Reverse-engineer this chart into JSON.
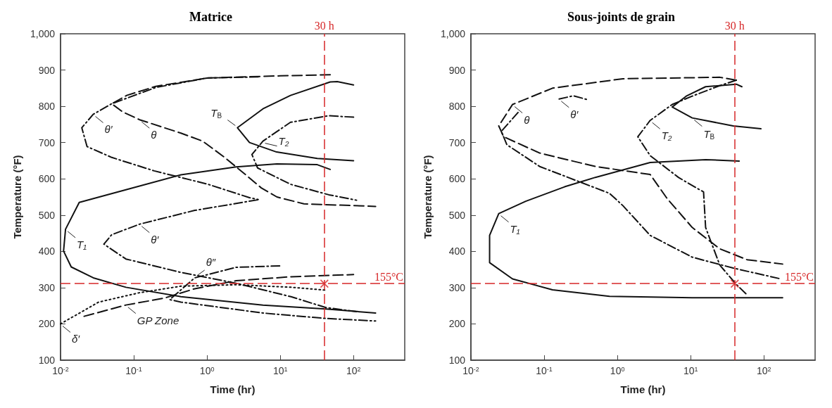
{
  "chart_data": [
    {
      "type": "line",
      "title": "Matrice",
      "xlabel": "Time (hr)",
      "ylabel": "Temperature (°F)",
      "log": "x",
      "grid": false,
      "xlim": [
        0.01,
        500
      ],
      "xticks": [
        {
          "value": 0.01,
          "label": "10$^{-2}$"
        },
        {
          "value": 0.1,
          "label": "10$^{-1}$"
        },
        {
          "value": 1,
          "label": "10$^{0}$"
        },
        {
          "value": 10,
          "label": "10$^{1}$"
        },
        {
          "value": 100,
          "label": "10$^{2}$"
        }
      ],
      "ylim": [
        100,
        1000
      ],
      "yticks": [
        100,
        200,
        300,
        400,
        500,
        600,
        700,
        800,
        900,
        {
          "value": 1000,
          "label": "1,000"
        }
      ],
      "series": [
        {
          "color": "#111111",
          "line_style": "dashed",
          "x": [
            48,
            10,
            1,
            0.2,
            0.08,
            0.05,
            0.07,
            0.12,
            0.44,
            0.87,
            1.74,
            3.2,
            5.5,
            9,
            21,
            200
          ],
          "values": [
            887,
            884,
            878,
            855,
            830,
            807,
            785,
            763,
            726,
            704,
            659,
            615,
            575,
            550,
            531,
            524
          ]
        },
        {
          "color": "#111111",
          "line_style": "dashdot",
          "x": [
            5,
            1,
            0.2,
            0.05,
            0.028,
            0.0195,
            0.023,
            0.05,
            0.19,
            1.03,
            3.8,
            5
          ],
          "values": [
            881,
            878,
            852,
            807,
            778,
            741,
            689,
            659,
            622,
            585,
            548,
            543
          ]
        },
        {
          "color": "#111111",
          "line_style": "solid",
          "x": [
            100,
            60,
            48,
            13.8,
            5.8,
            2.6,
            3.8,
            8.9,
            32,
            100
          ],
          "values": [
            859,
            868,
            867,
            830,
            793,
            741,
            700,
            674,
            656,
            650
          ]
        },
        {
          "color": "#111111",
          "line_style": "dashdot",
          "x": [
            100,
            46,
            13.8,
            5.8,
            4.1,
            4.9,
            13.8,
            46,
            110
          ],
          "values": [
            770,
            774,
            756,
            704,
            667,
            630,
            585,
            556,
            541
          ]
        },
        {
          "color": "#111111",
          "line_style": "solid",
          "x": [
            48,
            32,
            9,
            2.5,
            0.44,
            0.078,
            0.018,
            0.0117,
            0.011,
            0.014,
            0.028,
            0.078,
            0.44,
            5.8,
            42,
            200
          ],
          "values": [
            626,
            639,
            641,
            633,
            611,
            570,
            535,
            461,
            401,
            357,
            327,
            301,
            275,
            252,
            241,
            230
          ]
        },
        {
          "color": "#111111",
          "line_style": "dashdot",
          "x": [
            4.9,
            0.68,
            0.12,
            0.05,
            0.039,
            0.078,
            0.44,
            2.5,
            14,
            42,
            110
          ],
          "values": [
            542,
            513,
            475,
            446,
            420,
            379,
            342,
            312,
            275,
            245,
            234
          ]
        },
        {
          "color": "#111111",
          "line_style": "dashdot",
          "x": [
            9.8,
            2.5,
            0.68,
            0.31,
            0.44,
            5.8,
            42,
            200
          ],
          "values": [
            360,
            356,
            327,
            267,
            260,
            230,
            215,
            208
          ]
        },
        {
          "color": "#111111",
          "line_style": "dashed",
          "x": [
            0.021,
            0.078,
            0.26,
            0.68,
            2.5,
            14,
            100
          ],
          "values": [
            221,
            252,
            271,
            297,
            319,
            330,
            336
          ]
        },
        {
          "color": "#111111",
          "line_style": "dotted",
          "x": [
            0.01,
            0.033,
            0.12,
            0.44,
            2.5,
            14,
            42
          ],
          "values": [
            200,
            260,
            286,
            304,
            308,
            301,
            293
          ]
        },
        {
          "type": "scatter",
          "marker": "cross",
          "color": "#d62728",
          "x": [
            40
          ],
          "values": [
            311
          ]
        }
      ],
      "ref_lines": [
        {
          "axis": "x",
          "value": 40,
          "label": "30 h",
          "color": "#d62728",
          "line_style": "dashed"
        },
        {
          "axis": "y",
          "value": 311,
          "label": "155°C",
          "color": "#d62728",
          "line_style": "dashed"
        }
      ],
      "annotations": [
        {
          "text": "θ",
          "x": 0.12,
          "y": 763
        },
        {
          "text": "θ′",
          "x": 0.028,
          "y": 778
        },
        {
          "text": "T$_{B}$",
          "x": 2.6,
          "y": 741
        },
        {
          "text": "T₂",
          "x": 5.8,
          "y": 704
        },
        {
          "text": "T₁",
          "x": 0.0117,
          "y": 461
        },
        {
          "text": "θ′",
          "x": 0.12,
          "y": 475
        },
        {
          "text": "θ″",
          "x": 0.68,
          "y": 327
        },
        {
          "text": "GP Zone",
          "x": 0.078,
          "y": 252
        },
        {
          "text": "δ′",
          "x": 0.01,
          "y": 200
        }
      ]
    },
    {
      "type": "line",
      "title": "Sous-joints de grain",
      "xlabel": "Time (hr)",
      "ylabel": "Temperature (°F)",
      "log": "x",
      "grid": false,
      "xlim": [
        0.01,
        500
      ],
      "xticks": [
        {
          "value": 0.01,
          "label": "10$^{-2}$"
        },
        {
          "value": 0.1,
          "label": "10$^{-1}$"
        },
        {
          "value": 1,
          "label": "10$^{0}$"
        },
        {
          "value": 10,
          "label": "10$^{1}$"
        },
        {
          "value": 100,
          "label": "10$^{2}$"
        }
      ],
      "ylim": [
        100,
        1000
      ],
      "yticks": [
        100,
        200,
        300,
        400,
        500,
        600,
        700,
        800,
        900,
        {
          "value": 1000,
          "label": "1,000"
        }
      ],
      "series": [
        {
          "color": "#111111",
          "line_style": "dashed",
          "x": [
            42,
            25,
            1.19,
            0.13,
            0.037,
            0.024,
            0.028,
            0.087,
            0.5,
            2.8,
            4.8,
            10.5,
            25,
            59,
            180
          ],
          "values": [
            872,
            880,
            876,
            850,
            805,
            746,
            716,
            671,
            634,
            612,
            545,
            466,
            407,
            377,
            365
          ]
        },
        {
          "color": "#111111",
          "line_style": "dashdot",
          "x": [
            0.044,
            0.026,
            0.031,
            0.087,
            0.32,
            0.78,
            1.19,
            2.8,
            10.5,
            38,
            170
          ],
          "values": [
            783,
            731,
            694,
            634,
            590,
            560,
            526,
            444,
            384,
            354,
            324
          ]
        },
        {
          "color": "#111111",
          "line_style": "dashdot",
          "x": [
            0.16,
            0.25,
            0.38
          ],
          "values": [
            820,
            829,
            819
          ]
        },
        {
          "color": "#111111",
          "line_style": "dashdot",
          "x": [
            42,
            25,
            10.5,
            5.6,
            2.8,
            1.9,
            2.8,
            6.8,
            12,
            15,
            16,
            25,
            42,
            59
          ],
          "values": [
            872,
            857,
            828,
            805,
            761,
            716,
            664,
            604,
            575,
            564,
            466,
            362,
            309,
            280
          ]
        },
        {
          "color": "#111111",
          "line_style": "solid",
          "x": [
            50,
            42,
            16,
            8.7,
            5.6,
            10.5,
            38,
            91
          ],
          "values": [
            854,
            861,
            854,
            828,
            798,
            768,
            746,
            738
          ]
        },
        {
          "color": "#111111",
          "line_style": "solid",
          "x": [
            46,
            16,
            2.8,
            0.5,
            0.19,
            0.056,
            0.024,
            0.018,
            0.018,
            0.037,
            0.13,
            0.78,
            10.5,
            180
          ],
          "values": [
            649,
            653,
            645,
            604,
            578,
            538,
            504,
            444,
            369,
            324,
            294,
            276,
            272,
            272
          ]
        },
        {
          "type": "scatter",
          "marker": "cross",
          "color": "#d62728",
          "x": [
            40
          ],
          "values": [
            311
          ]
        }
      ],
      "ref_lines": [
        {
          "axis": "x",
          "value": 40,
          "label": "30 h",
          "color": "#d62728",
          "line_style": "dashed"
        },
        {
          "axis": "y",
          "value": 311,
          "label": "155°C",
          "color": "#d62728",
          "line_style": "dashed"
        }
      ],
      "annotations": [
        {
          "text": "θ",
          "x": 0.037,
          "y": 805
        },
        {
          "text": "θ′",
          "x": 0.16,
          "y": 820
        },
        {
          "text": "T₂",
          "x": 2.8,
          "y": 761
        },
        {
          "text": "T$_{B}$",
          "x": 10.5,
          "y": 768
        },
        {
          "text": "T₁",
          "x": 0.024,
          "y": 504
        }
      ]
    }
  ]
}
